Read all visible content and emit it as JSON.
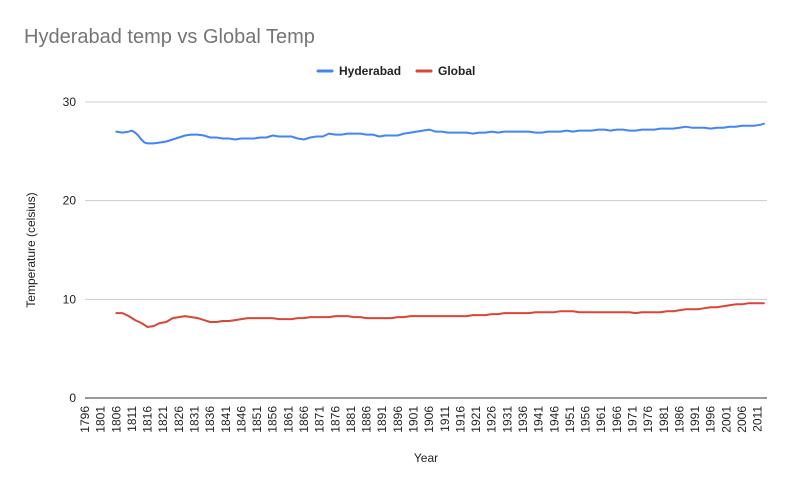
{
  "chart_data": {
    "type": "line",
    "title": "Hyderabad temp vs Global Temp",
    "xlabel": "Year",
    "ylabel": "Temperature (celsius)",
    "ylim": [
      0,
      30
    ],
    "yticks": [
      0,
      10,
      20,
      30
    ],
    "xticks": [
      1796,
      1801,
      1806,
      1811,
      1816,
      1821,
      1826,
      1831,
      1836,
      1841,
      1846,
      1851,
      1856,
      1861,
      1866,
      1871,
      1876,
      1881,
      1886,
      1891,
      1896,
      1901,
      1906,
      1911,
      1916,
      1921,
      1926,
      1931,
      1936,
      1941,
      1946,
      1951,
      1956,
      1961,
      1966,
      1971,
      1976,
      1981,
      1986,
      1991,
      1996,
      2001,
      2006,
      2011
    ],
    "legend_position": "top",
    "grid": true,
    "series": [
      {
        "name": "Hyderabad",
        "color": "#4285f4",
        "x": [
          1806,
          1808,
          1810,
          1811,
          1812,
          1813,
          1814,
          1815,
          1816,
          1818,
          1820,
          1822,
          1824,
          1826,
          1828,
          1830,
          1832,
          1834,
          1836,
          1838,
          1840,
          1842,
          1844,
          1846,
          1848,
          1850,
          1852,
          1854,
          1856,
          1858,
          1860,
          1862,
          1864,
          1866,
          1868,
          1870,
          1872,
          1874,
          1876,
          1878,
          1880,
          1882,
          1884,
          1886,
          1888,
          1890,
          1892,
          1894,
          1896,
          1898,
          1900,
          1902,
          1904,
          1906,
          1908,
          1910,
          1912,
          1914,
          1916,
          1918,
          1920,
          1922,
          1924,
          1926,
          1928,
          1930,
          1932,
          1934,
          1936,
          1938,
          1940,
          1942,
          1944,
          1946,
          1948,
          1950,
          1952,
          1954,
          1956,
          1958,
          1960,
          1962,
          1964,
          1966,
          1968,
          1970,
          1972,
          1974,
          1976,
          1978,
          1980,
          1982,
          1984,
          1986,
          1988,
          1990,
          1992,
          1994,
          1996,
          1998,
          2000,
          2002,
          2004,
          2006,
          2008,
          2010,
          2012,
          2013
        ],
        "values": [
          27.0,
          26.9,
          27.0,
          27.1,
          26.9,
          26.6,
          26.2,
          25.9,
          25.8,
          25.8,
          25.9,
          26.0,
          26.2,
          26.4,
          26.6,
          26.7,
          26.7,
          26.6,
          26.4,
          26.4,
          26.3,
          26.3,
          26.2,
          26.3,
          26.3,
          26.3,
          26.4,
          26.4,
          26.6,
          26.5,
          26.5,
          26.5,
          26.3,
          26.2,
          26.4,
          26.5,
          26.5,
          26.8,
          26.7,
          26.7,
          26.8,
          26.8,
          26.8,
          26.7,
          26.7,
          26.5,
          26.6,
          26.6,
          26.6,
          26.8,
          26.9,
          27.0,
          27.1,
          27.2,
          27.0,
          27.0,
          26.9,
          26.9,
          26.9,
          26.9,
          26.8,
          26.9,
          26.9,
          27.0,
          26.9,
          27.0,
          27.0,
          27.0,
          27.0,
          27.0,
          26.9,
          26.9,
          27.0,
          27.0,
          27.0,
          27.1,
          27.0,
          27.1,
          27.1,
          27.1,
          27.2,
          27.2,
          27.1,
          27.2,
          27.2,
          27.1,
          27.1,
          27.2,
          27.2,
          27.2,
          27.3,
          27.3,
          27.3,
          27.4,
          27.5,
          27.4,
          27.4,
          27.4,
          27.3,
          27.4,
          27.4,
          27.5,
          27.5,
          27.6,
          27.6,
          27.6,
          27.7,
          27.8
        ]
      },
      {
        "name": "Global",
        "color": "#db4437",
        "x": [
          1806,
          1808,
          1810,
          1812,
          1814,
          1816,
          1818,
          1820,
          1822,
          1824,
          1826,
          1828,
          1830,
          1832,
          1834,
          1836,
          1838,
          1840,
          1842,
          1844,
          1846,
          1848,
          1850,
          1852,
          1854,
          1856,
          1858,
          1860,
          1862,
          1864,
          1866,
          1868,
          1870,
          1872,
          1874,
          1876,
          1878,
          1880,
          1882,
          1884,
          1886,
          1888,
          1890,
          1892,
          1894,
          1896,
          1898,
          1900,
          1902,
          1904,
          1906,
          1908,
          1910,
          1912,
          1914,
          1916,
          1918,
          1920,
          1922,
          1924,
          1926,
          1928,
          1930,
          1932,
          1934,
          1936,
          1938,
          1940,
          1942,
          1944,
          1946,
          1948,
          1950,
          1952,
          1954,
          1956,
          1958,
          1960,
          1962,
          1964,
          1966,
          1968,
          1970,
          1972,
          1974,
          1976,
          1978,
          1980,
          1982,
          1984,
          1986,
          1988,
          1990,
          1992,
          1994,
          1996,
          1998,
          2000,
          2002,
          2004,
          2006,
          2008,
          2010,
          2012,
          2013
        ],
        "values": [
          8.6,
          8.6,
          8.3,
          7.9,
          7.6,
          7.2,
          7.3,
          7.6,
          7.7,
          8.1,
          8.2,
          8.3,
          8.2,
          8.1,
          7.9,
          7.7,
          7.7,
          7.8,
          7.8,
          7.9,
          8.0,
          8.1,
          8.1,
          8.1,
          8.1,
          8.1,
          8.0,
          8.0,
          8.0,
          8.1,
          8.1,
          8.2,
          8.2,
          8.2,
          8.2,
          8.3,
          8.3,
          8.3,
          8.2,
          8.2,
          8.1,
          8.1,
          8.1,
          8.1,
          8.1,
          8.2,
          8.2,
          8.3,
          8.3,
          8.3,
          8.3,
          8.3,
          8.3,
          8.3,
          8.3,
          8.3,
          8.3,
          8.4,
          8.4,
          8.4,
          8.5,
          8.5,
          8.6,
          8.6,
          8.6,
          8.6,
          8.6,
          8.7,
          8.7,
          8.7,
          8.7,
          8.8,
          8.8,
          8.8,
          8.7,
          8.7,
          8.7,
          8.7,
          8.7,
          8.7,
          8.7,
          8.7,
          8.7,
          8.6,
          8.7,
          8.7,
          8.7,
          8.7,
          8.8,
          8.8,
          8.9,
          9.0,
          9.0,
          9.0,
          9.1,
          9.2,
          9.2,
          9.3,
          9.4,
          9.5,
          9.5,
          9.6,
          9.6,
          9.6,
          9.6
        ]
      }
    ]
  }
}
